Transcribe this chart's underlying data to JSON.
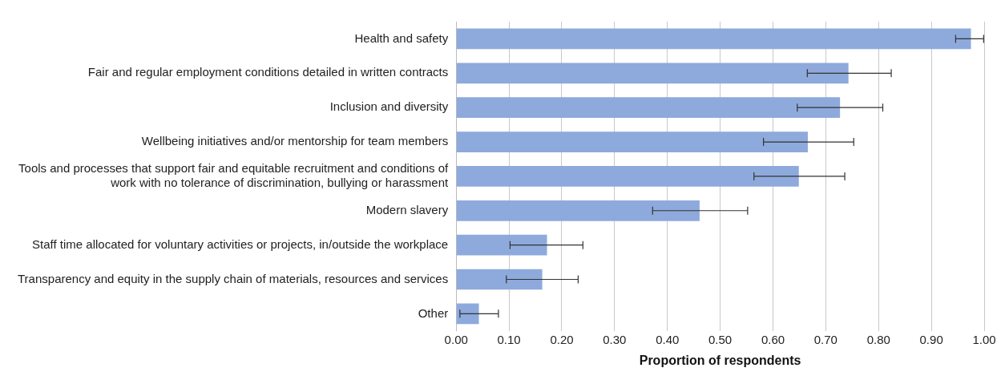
{
  "chart_data": {
    "type": "bar",
    "orientation": "horizontal",
    "xlabel": "Proportion of respondents",
    "categories": [
      "Health and safety",
      "Fair and regular employment conditions detailed in written contracts",
      "Inclusion and diversity",
      "Wellbeing initiatives and/or mentorship for team members",
      "Tools and processes that support fair and equitable recruitment and conditions of work with no tolerance of discrimination, bullying or harassment",
      "Modern slavery",
      "Staff time allocated for voluntary activities or projects, in/outside the workplace",
      "Transparency and equity in the supply chain of materials, resources and services",
      "Other"
    ],
    "values": [
      0.975,
      0.743,
      0.727,
      0.666,
      0.649,
      0.461,
      0.172,
      0.163,
      0.043
    ],
    "errors": [
      [
        0.946,
        0.999
      ],
      [
        0.665,
        0.824
      ],
      [
        0.646,
        0.808
      ],
      [
        0.582,
        0.753
      ],
      [
        0.564,
        0.736
      ],
      [
        0.372,
        0.552
      ],
      [
        0.102,
        0.24
      ],
      [
        0.095,
        0.231
      ],
      [
        0.007,
        0.08
      ]
    ],
    "color": "#8eaadc",
    "xlim": [
      0,
      1
    ],
    "xticks": [
      {
        "value": 0,
        "label": "0.00"
      },
      {
        "value": 0.1,
        "label": "0.10"
      },
      {
        "value": 0.2,
        "label": "0.20"
      },
      {
        "value": 0.3,
        "label": "0.30"
      },
      {
        "value": 0.4,
        "label": "0.40"
      },
      {
        "value": 0.5,
        "label": "0.50"
      },
      {
        "value": 0.6,
        "label": "0.60"
      },
      {
        "value": 0.7,
        "label": "0.70"
      },
      {
        "value": 0.8,
        "label": "0.80"
      },
      {
        "value": 0.9,
        "label": "0.90"
      },
      {
        "value": 1,
        "label": "1.00"
      }
    ],
    "grid": "x",
    "legend": false
  }
}
